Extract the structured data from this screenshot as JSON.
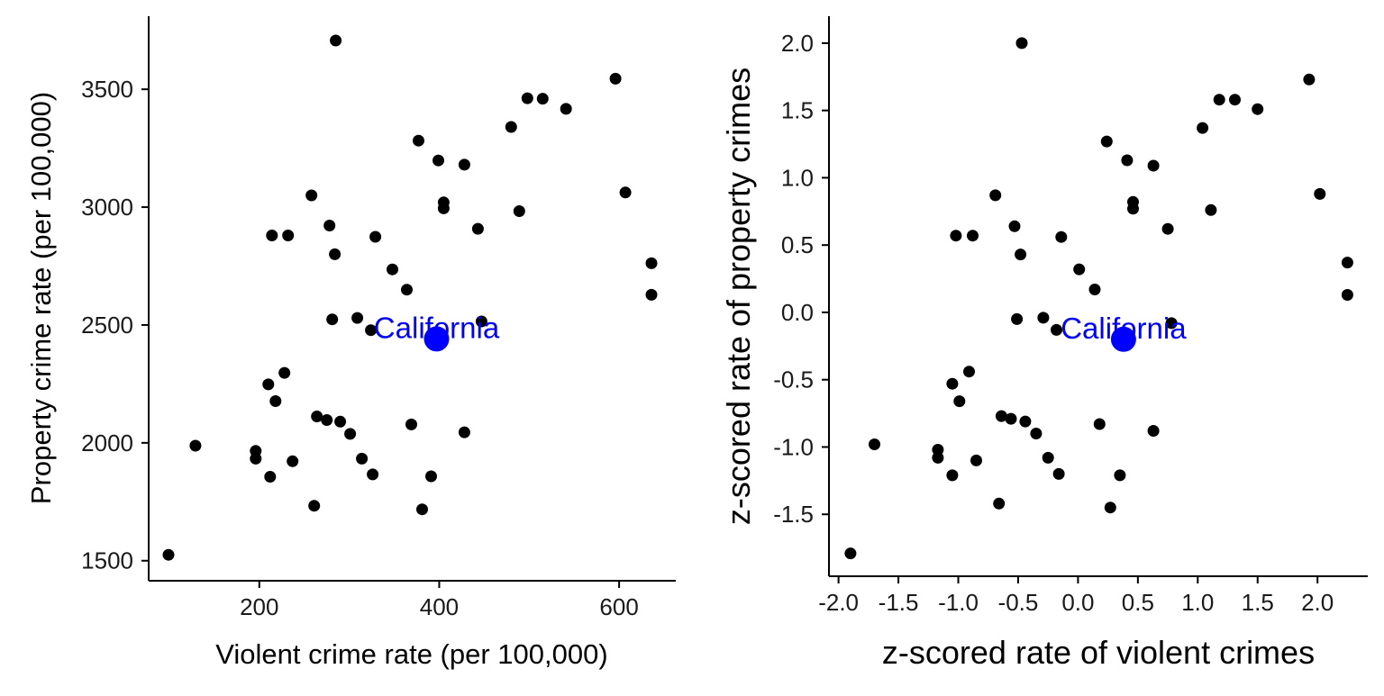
{
  "colors": {
    "points": "#000000",
    "highlight": "#0000ff",
    "axis": "#000000"
  },
  "chart_data": [
    {
      "type": "scatter",
      "xlabel": "Violent crime rate (per 100,000)",
      "ylabel": "Property crime rate (per 100,000)",
      "xlim": [
        77,
        663
      ],
      "ylim": [
        1415,
        3810
      ],
      "xticks": [
        200,
        400,
        600
      ],
      "yticks": [
        1500,
        2000,
        2500,
        3000,
        3500
      ],
      "x_tick_labels": [
        "200",
        "400",
        "600"
      ],
      "y_tick_labels": [
        "1500",
        "2000",
        "2500",
        "3000",
        "3500"
      ],
      "grid": false,
      "points": [
        {
          "x": 99,
          "y": 1525
        },
        {
          "x": 129,
          "y": 1988
        },
        {
          "x": 196,
          "y": 1966
        },
        {
          "x": 196,
          "y": 1933
        },
        {
          "x": 212,
          "y": 1856
        },
        {
          "x": 210,
          "y": 2248
        },
        {
          "x": 214,
          "y": 2880
        },
        {
          "x": 218,
          "y": 2177
        },
        {
          "x": 228,
          "y": 2297
        },
        {
          "x": 232,
          "y": 2880
        },
        {
          "x": 237,
          "y": 1922
        },
        {
          "x": 258,
          "y": 3050
        },
        {
          "x": 261,
          "y": 1733
        },
        {
          "x": 264,
          "y": 2112
        },
        {
          "x": 275,
          "y": 2097
        },
        {
          "x": 278,
          "y": 2922
        },
        {
          "x": 281,
          "y": 2524
        },
        {
          "x": 284,
          "y": 2800
        },
        {
          "x": 285,
          "y": 3707
        },
        {
          "x": 290,
          "y": 2090
        },
        {
          "x": 301,
          "y": 2038
        },
        {
          "x": 309,
          "y": 2530
        },
        {
          "x": 314,
          "y": 1933
        },
        {
          "x": 324,
          "y": 2478
        },
        {
          "x": 326,
          "y": 1866
        },
        {
          "x": 329,
          "y": 2874
        },
        {
          "x": 348,
          "y": 2736
        },
        {
          "x": 364,
          "y": 2650
        },
        {
          "x": 369,
          "y": 2078
        },
        {
          "x": 377,
          "y": 3282
        },
        {
          "x": 381,
          "y": 1718
        },
        {
          "x": 391,
          "y": 1858
        },
        {
          "x": 399,
          "y": 3198
        },
        {
          "x": 405,
          "y": 3020
        },
        {
          "x": 405,
          "y": 2995
        },
        {
          "x": 428,
          "y": 3180
        },
        {
          "x": 428,
          "y": 2045
        },
        {
          "x": 443,
          "y": 2908
        },
        {
          "x": 447,
          "y": 2515
        },
        {
          "x": 480,
          "y": 3340
        },
        {
          "x": 489,
          "y": 2983
        },
        {
          "x": 498,
          "y": 3462
        },
        {
          "x": 515,
          "y": 3460
        },
        {
          "x": 541,
          "y": 3417
        },
        {
          "x": 596,
          "y": 3545
        },
        {
          "x": 607,
          "y": 3062
        },
        {
          "x": 636,
          "y": 2762
        },
        {
          "x": 636,
          "y": 2628
        }
      ],
      "highlight": {
        "label": "California",
        "x": 397,
        "y": 2441
      }
    },
    {
      "type": "scatter",
      "xlabel": "z-scored rate of violent crimes",
      "ylabel": "z-scored rate of property crimes",
      "xlim": [
        -2.08,
        2.42
      ],
      "ylim": [
        -1.96,
        2.2
      ],
      "xticks": [
        -2.0,
        -1.5,
        -1.0,
        -0.5,
        0.0,
        0.5,
        1.0,
        1.5,
        2.0
      ],
      "yticks": [
        -1.5,
        -1.0,
        -0.5,
        0.0,
        0.5,
        1.0,
        1.5,
        2.0
      ],
      "x_tick_labels": [
        "-2.0",
        "-1.5",
        "-1.0",
        "-0.5",
        "0.0",
        "0.5",
        "1.0",
        "1.5",
        "2.0"
      ],
      "y_tick_labels": [
        "-1.5",
        "-1.0",
        "-0.5",
        "0.0",
        "0.5",
        "1.0",
        "1.5",
        "2.0"
      ],
      "grid": false,
      "points": [
        {
          "x": -1.9,
          "y": -1.79
        },
        {
          "x": -1.7,
          "y": -0.98
        },
        {
          "x": -1.17,
          "y": -1.02
        },
        {
          "x": -1.17,
          "y": -1.08
        },
        {
          "x": -1.05,
          "y": -1.21
        },
        {
          "x": -1.05,
          "y": -0.53
        },
        {
          "x": -1.02,
          "y": 0.57
        },
        {
          "x": -0.99,
          "y": -0.66
        },
        {
          "x": -0.91,
          "y": -0.44
        },
        {
          "x": -0.88,
          "y": 0.57
        },
        {
          "x": -0.85,
          "y": -1.1
        },
        {
          "x": -0.69,
          "y": 0.87
        },
        {
          "x": -0.66,
          "y": -1.42
        },
        {
          "x": -0.64,
          "y": -0.77
        },
        {
          "x": -0.56,
          "y": -0.79
        },
        {
          "x": -0.53,
          "y": 0.64
        },
        {
          "x": -0.51,
          "y": -0.05
        },
        {
          "x": -0.48,
          "y": 0.43
        },
        {
          "x": -0.47,
          "y": 2.0
        },
        {
          "x": -0.44,
          "y": -0.81
        },
        {
          "x": -0.35,
          "y": -0.9
        },
        {
          "x": -0.29,
          "y": -0.04
        },
        {
          "x": -0.25,
          "y": -1.08
        },
        {
          "x": -0.18,
          "y": -0.13
        },
        {
          "x": -0.16,
          "y": -1.2
        },
        {
          "x": -0.14,
          "y": 0.56
        },
        {
          "x": 0.01,
          "y": 0.32
        },
        {
          "x": 0.14,
          "y": 0.17
        },
        {
          "x": 0.18,
          "y": -0.83
        },
        {
          "x": 0.24,
          "y": 1.27
        },
        {
          "x": 0.27,
          "y": -1.45
        },
        {
          "x": 0.35,
          "y": -1.21
        },
        {
          "x": 0.41,
          "y": 1.13
        },
        {
          "x": 0.46,
          "y": 0.82
        },
        {
          "x": 0.46,
          "y": 0.77
        },
        {
          "x": 0.63,
          "y": 1.09
        },
        {
          "x": 0.63,
          "y": -0.88
        },
        {
          "x": 0.75,
          "y": 0.62
        },
        {
          "x": 0.78,
          "y": -0.08
        },
        {
          "x": 1.04,
          "y": 1.37
        },
        {
          "x": 1.11,
          "y": 0.76
        },
        {
          "x": 1.18,
          "y": 1.58
        },
        {
          "x": 1.31,
          "y": 1.58
        },
        {
          "x": 1.5,
          "y": 1.51
        },
        {
          "x": 1.93,
          "y": 1.73
        },
        {
          "x": 2.02,
          "y": 0.88
        },
        {
          "x": 2.25,
          "y": 0.37
        },
        {
          "x": 2.25,
          "y": 0.13
        }
      ],
      "highlight": {
        "label": "California",
        "x": 0.38,
        "y": -0.2
      }
    }
  ]
}
